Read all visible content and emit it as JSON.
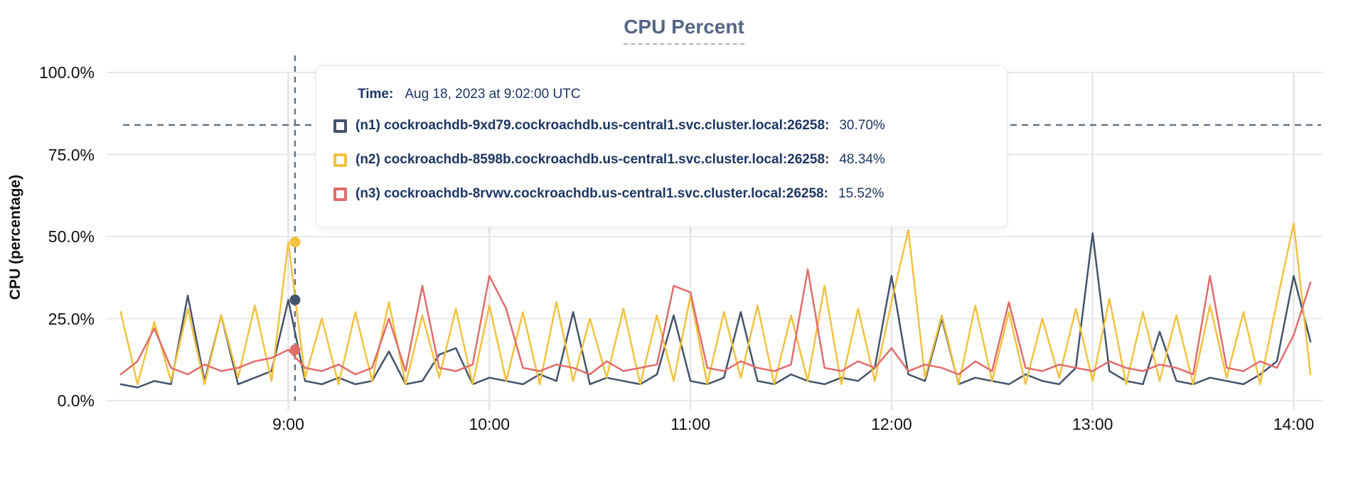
{
  "title": "CPU Percent",
  "y_axis": {
    "title": "CPU (percentage)"
  },
  "tooltip": {
    "time_label": "Time:",
    "time_value": "Aug 18, 2023 at 9:02:00 UTC",
    "rows": [
      {
        "name": "(n1) cockroachdb-9xd79.cockroachdb.us-central1.svc.cluster.local:26258:",
        "value": "30.70%",
        "color": "#44536b"
      },
      {
        "name": "(n2) cockroachdb-8598b.cockroachdb.us-central1.svc.cluster.local:26258:",
        "value": "48.34%",
        "color": "#f2c13e"
      },
      {
        "name": "(n3) cockroachdb-8rvwv.cockroachdb.us-central1.svc.cluster.local:26258:",
        "value": "15.52%",
        "color": "#e06c6c"
      }
    ]
  },
  "colors": {
    "grid": "#e8e8e8",
    "dashed_guides": "#5f7281",
    "title": "#556584",
    "tooltip_text": "#1c3663"
  },
  "chart_data": {
    "type": "line",
    "title": "CPU Percent",
    "xlabel": "",
    "ylabel": "CPU (percentage)",
    "ylim": [
      0,
      100
    ],
    "grid": true,
    "legend_position": "tooltip-overlay",
    "x_unit": "minutes_after_midnight_UTC",
    "y_ticks": [
      {
        "label": "100.0%",
        "value": 100
      },
      {
        "label": "75.0%",
        "value": 75
      },
      {
        "label": "50.0%",
        "value": 50
      },
      {
        "label": "25.0%",
        "value": 25
      },
      {
        "label": "0.0%",
        "value": 0
      }
    ],
    "x_ticks": [
      {
        "label": "9:00",
        "minutes": 540
      },
      {
        "label": "10:00",
        "minutes": 600
      },
      {
        "label": "11:00",
        "minutes": 660
      },
      {
        "label": "12:00",
        "minutes": 720
      },
      {
        "label": "13:00",
        "minutes": 780
      },
      {
        "label": "14:00",
        "minutes": 840
      }
    ],
    "threshold_line": {
      "value": 84,
      "style": "dashed",
      "color": "#5f7281"
    },
    "hover": {
      "minutes": 542,
      "time": "Aug 18, 2023 at 9:02:00 UTC",
      "values": [
        30.7,
        48.34,
        15.52
      ],
      "line_style": "dashed-vertical"
    },
    "x": [
      490,
      495,
      500,
      505,
      510,
      515,
      520,
      525,
      530,
      535,
      540,
      545,
      550,
      555,
      560,
      565,
      570,
      575,
      580,
      585,
      590,
      595,
      600,
      605,
      610,
      615,
      620,
      625,
      630,
      635,
      640,
      645,
      650,
      655,
      660,
      665,
      670,
      675,
      680,
      685,
      690,
      695,
      700,
      705,
      710,
      715,
      720,
      725,
      730,
      735,
      740,
      745,
      750,
      755,
      760,
      765,
      770,
      775,
      780,
      785,
      790,
      795,
      800,
      805,
      810,
      815,
      820,
      825,
      830,
      835,
      840,
      845
    ],
    "series": [
      {
        "name": "(n1) cockroachdb-9xd79.cockroachdb.us-central1.svc.cluster.local:26258",
        "color": "#44536b",
        "values": [
          5,
          4,
          6,
          5,
          32,
          6,
          26,
          5,
          7,
          9,
          30.7,
          6,
          5,
          7,
          5,
          6,
          15,
          5,
          6,
          14,
          16,
          5,
          7,
          6,
          5,
          8,
          6,
          27,
          5,
          7,
          6,
          5,
          8,
          26,
          6,
          5,
          7,
          27,
          6,
          5,
          8,
          6,
          5,
          7,
          6,
          10,
          38,
          8,
          6,
          25,
          5,
          7,
          6,
          5,
          8,
          6,
          5,
          10,
          51,
          9,
          6,
          5,
          21,
          6,
          5,
          7,
          6,
          5,
          8,
          12,
          38,
          18
        ]
      },
      {
        "name": "(n2) cockroachdb-8598b.cockroachdb.us-central1.svc.cluster.local:26258",
        "color": "#f2c13e",
        "values": [
          27,
          5,
          24,
          6,
          28,
          5,
          26,
          7,
          29,
          6,
          48.3,
          7,
          25,
          5,
          27,
          6,
          30,
          5,
          26,
          7,
          28,
          5,
          29,
          6,
          27,
          5,
          30,
          6,
          25,
          7,
          28,
          5,
          26,
          6,
          32,
          5,
          27,
          7,
          29,
          5,
          26,
          6,
          35,
          5,
          28,
          6,
          30,
          52,
          7,
          26,
          5,
          29,
          6,
          27,
          5,
          25,
          7,
          28,
          6,
          31,
          5,
          27,
          6,
          26,
          5,
          29,
          7,
          27,
          5,
          30,
          54,
          8
        ]
      },
      {
        "name": "(n3) cockroachdb-8rvwv.cockroachdb.us-central1.svc.cluster.local:26258",
        "color": "#e06c6c",
        "values": [
          8,
          12,
          22,
          10,
          8,
          11,
          9,
          10,
          12,
          13,
          15.5,
          10,
          9,
          11,
          8,
          10,
          25,
          9,
          35,
          10,
          9,
          11,
          38,
          28,
          10,
          9,
          11,
          10,
          8,
          12,
          9,
          10,
          11,
          35,
          33,
          10,
          9,
          12,
          10,
          9,
          11,
          40,
          10,
          9,
          12,
          10,
          16,
          9,
          11,
          10,
          8,
          12,
          9,
          30,
          10,
          9,
          11,
          10,
          9,
          12,
          10,
          9,
          11,
          10,
          8,
          38,
          10,
          9,
          12,
          10,
          20,
          36
        ]
      }
    ]
  }
}
